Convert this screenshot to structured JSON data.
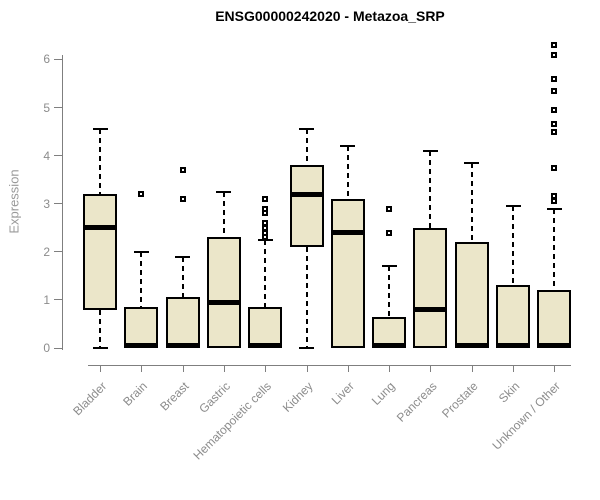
{
  "title": "ENSG00000242020 - Metazoa_SRP",
  "y_axis": {
    "label": "Expression",
    "ticks": [
      "0",
      "1",
      "2",
      "3",
      "4",
      "5",
      "6"
    ]
  },
  "colors": {
    "box_fill": "#EBE6C9",
    "box_border": "#000000",
    "median": "#000000",
    "axis": "#7f7f7f",
    "tick_label": "#8c8c8c",
    "title": "#000000"
  },
  "chart_data": {
    "type": "boxplot",
    "title": "ENSG00000242020 - Metazoa_SRP",
    "xlabel": "",
    "ylabel": "Expression",
    "ylim": [
      0,
      6.4
    ],
    "grid": false,
    "categories": [
      "Bladder",
      "Brain",
      "Breast",
      "Gastric",
      "Hematopoietic cells",
      "Kidney",
      "Liver",
      "Lung",
      "Pancreas",
      "Prostate",
      "Skin",
      "Unknown / Other"
    ],
    "series": [
      {
        "name": "Bladder",
        "whisker_low": 0,
        "q1": 0.8,
        "median": 2.5,
        "q3": 3.2,
        "whisker_high": 4.55,
        "outliers": []
      },
      {
        "name": "Brain",
        "whisker_low": 0,
        "q1": 0,
        "median": 0.05,
        "q3": 0.85,
        "whisker_high": 2.0,
        "outliers": [
          3.2
        ]
      },
      {
        "name": "Breast",
        "whisker_low": 0,
        "q1": 0,
        "median": 0.05,
        "q3": 1.05,
        "whisker_high": 1.9,
        "outliers": [
          3.7,
          3.1
        ]
      },
      {
        "name": "Gastric",
        "whisker_low": 0,
        "q1": 0,
        "median": 0.95,
        "q3": 2.3,
        "whisker_high": 3.25,
        "outliers": []
      },
      {
        "name": "Hematopoietic cells",
        "whisker_low": 0,
        "q1": 0,
        "median": 0.05,
        "q3": 0.85,
        "whisker_high": 2.25,
        "outliers": [
          3.1,
          2.9,
          2.8,
          2.6,
          2.5,
          2.4,
          2.3
        ]
      },
      {
        "name": "Kidney",
        "whisker_low": 0,
        "q1": 2.1,
        "median": 3.2,
        "q3": 3.8,
        "whisker_high": 4.55,
        "outliers": []
      },
      {
        "name": "Liver",
        "whisker_low": 0,
        "q1": 0,
        "median": 2.4,
        "q3": 3.1,
        "whisker_high": 4.2,
        "outliers": []
      },
      {
        "name": "Lung",
        "whisker_low": 0,
        "q1": 0,
        "median": 0.05,
        "q3": 0.65,
        "whisker_high": 1.7,
        "outliers": [
          2.9,
          2.4
        ]
      },
      {
        "name": "Pancreas",
        "whisker_low": 0,
        "q1": 0,
        "median": 0.8,
        "q3": 2.5,
        "whisker_high": 4.1,
        "outliers": []
      },
      {
        "name": "Prostate",
        "whisker_low": 0,
        "q1": 0,
        "median": 0.05,
        "q3": 2.2,
        "whisker_high": 3.85,
        "outliers": []
      },
      {
        "name": "Skin",
        "whisker_low": 0,
        "q1": 0,
        "median": 0.05,
        "q3": 1.3,
        "whisker_high": 2.95,
        "outliers": []
      },
      {
        "name": "Unknown / Other",
        "whisker_low": 0,
        "q1": 0,
        "median": 0.05,
        "q3": 1.2,
        "whisker_high": 2.9,
        "outliers": [
          6.3,
          6.1,
          5.6,
          5.35,
          4.95,
          4.65,
          4.5,
          3.75,
          3.15,
          3.05
        ]
      }
    ]
  }
}
